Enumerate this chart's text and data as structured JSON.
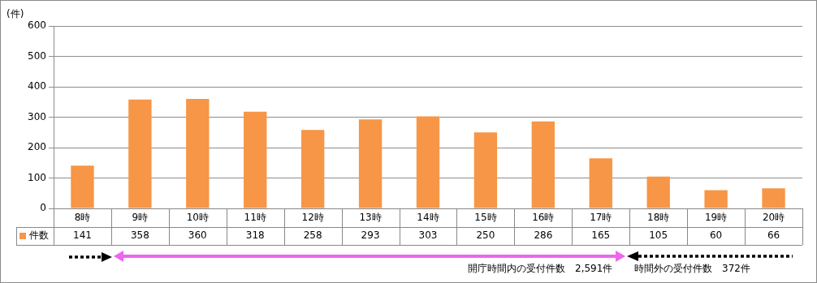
{
  "chart_data": {
    "type": "bar",
    "ylabel": "(件)",
    "categories": [
      "8時",
      "9時",
      "10時",
      "11時",
      "12時",
      "13時",
      "14時",
      "15時",
      "16時",
      "17時",
      "18時",
      "19時",
      "20時"
    ],
    "series": [
      {
        "name": "件数",
        "color": "#f79646",
        "values": [
          141,
          358,
          360,
          318,
          258,
          293,
          303,
          250,
          286,
          165,
          105,
          60,
          66
        ]
      }
    ],
    "ylim": [
      0,
      600
    ],
    "yticks": [
      0,
      100,
      200,
      300,
      400,
      500,
      600
    ],
    "grid": "y",
    "data_labels": true,
    "annotations": [
      "開庁時間内の受付件数　2,591件",
      "時間外の受付件数　372件"
    ]
  }
}
